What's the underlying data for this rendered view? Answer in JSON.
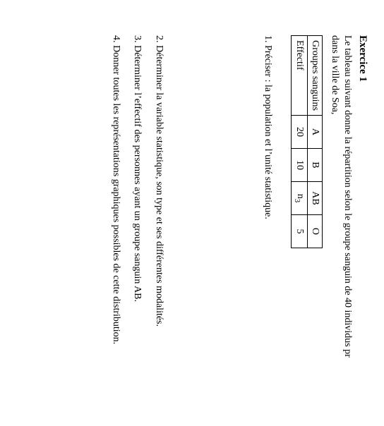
{
  "exercise": {
    "title": "Exercice 1",
    "intro_line1": "Le tableau suivant donne la répartition selon le groupe sanguin de 40 individus pr",
    "intro_line2": "dans la ville de Soa,",
    "table": {
      "row1_label": "Groupes sanguins",
      "row2_label": "Effectif",
      "cols": [
        "A",
        "B",
        "AB",
        "O"
      ],
      "vals": [
        "20",
        "10",
        "n",
        "5"
      ],
      "sub_index": "3"
    },
    "q1": "1. Préciser : la population et l’unité statistique.",
    "q2": "2. Déterminer la variable statistique, son type et ses différentes modalités.",
    "q3": "3. Déterminer l’effectif des personnes ayant un groupe sanguin AB.",
    "q4": "4. Donner toutes les représentations graphiques possibles de cette distribution."
  }
}
